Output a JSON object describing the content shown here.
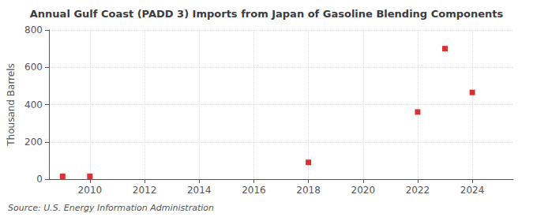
{
  "chart_data": {
    "type": "scatter",
    "title": "Annual Gulf Coast (PADD 3) Imports from Japan of Gasoline Blending Components",
    "ylabel": "Thousand Barrels",
    "annotation": "Source: U.S. Energy Information Administration",
    "x": [
      2009,
      2010,
      2018,
      2022,
      2023,
      2024
    ],
    "values": [
      15,
      15,
      90,
      360,
      700,
      465
    ],
    "color": "#cc0000",
    "marker": "square",
    "xlim": [
      2008.5,
      2025.5
    ],
    "xticks": [
      2010,
      2012,
      2014,
      2016,
      2018,
      2020,
      2022,
      2024
    ],
    "ylim": [
      0,
      800
    ],
    "yticks": [
      0,
      200,
      400,
      600,
      800
    ],
    "grid": true
  }
}
